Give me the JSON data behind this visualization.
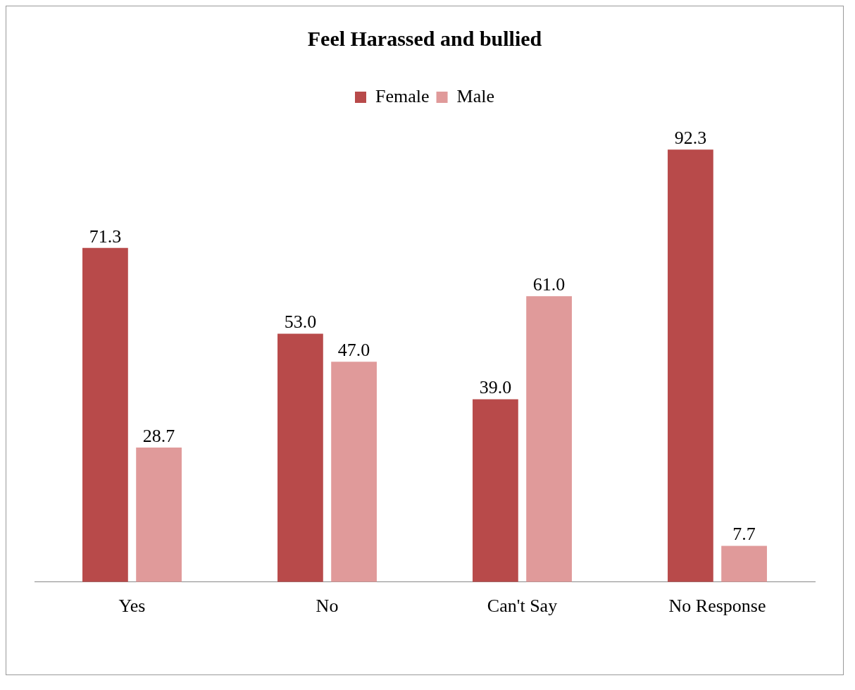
{
  "chart_data": {
    "type": "bar",
    "title": "Feel Harassed and bullied",
    "categories": [
      "Yes",
      "No",
      "Can't Say",
      "No Response"
    ],
    "series": [
      {
        "name": "Female",
        "color": "#b84a4a",
        "values": [
          71.3,
          53.0,
          39.0,
          92.3
        ],
        "value_labels": [
          "71.3",
          "53.0",
          "39.0",
          "92.3"
        ]
      },
      {
        "name": "Male",
        "color": "#e09a9a",
        "values": [
          28.7,
          47.0,
          61.0,
          7.7
        ],
        "value_labels": [
          "28.7",
          "47.0",
          "61.0",
          "7.7"
        ]
      }
    ],
    "legend": "top",
    "grid": false
  }
}
